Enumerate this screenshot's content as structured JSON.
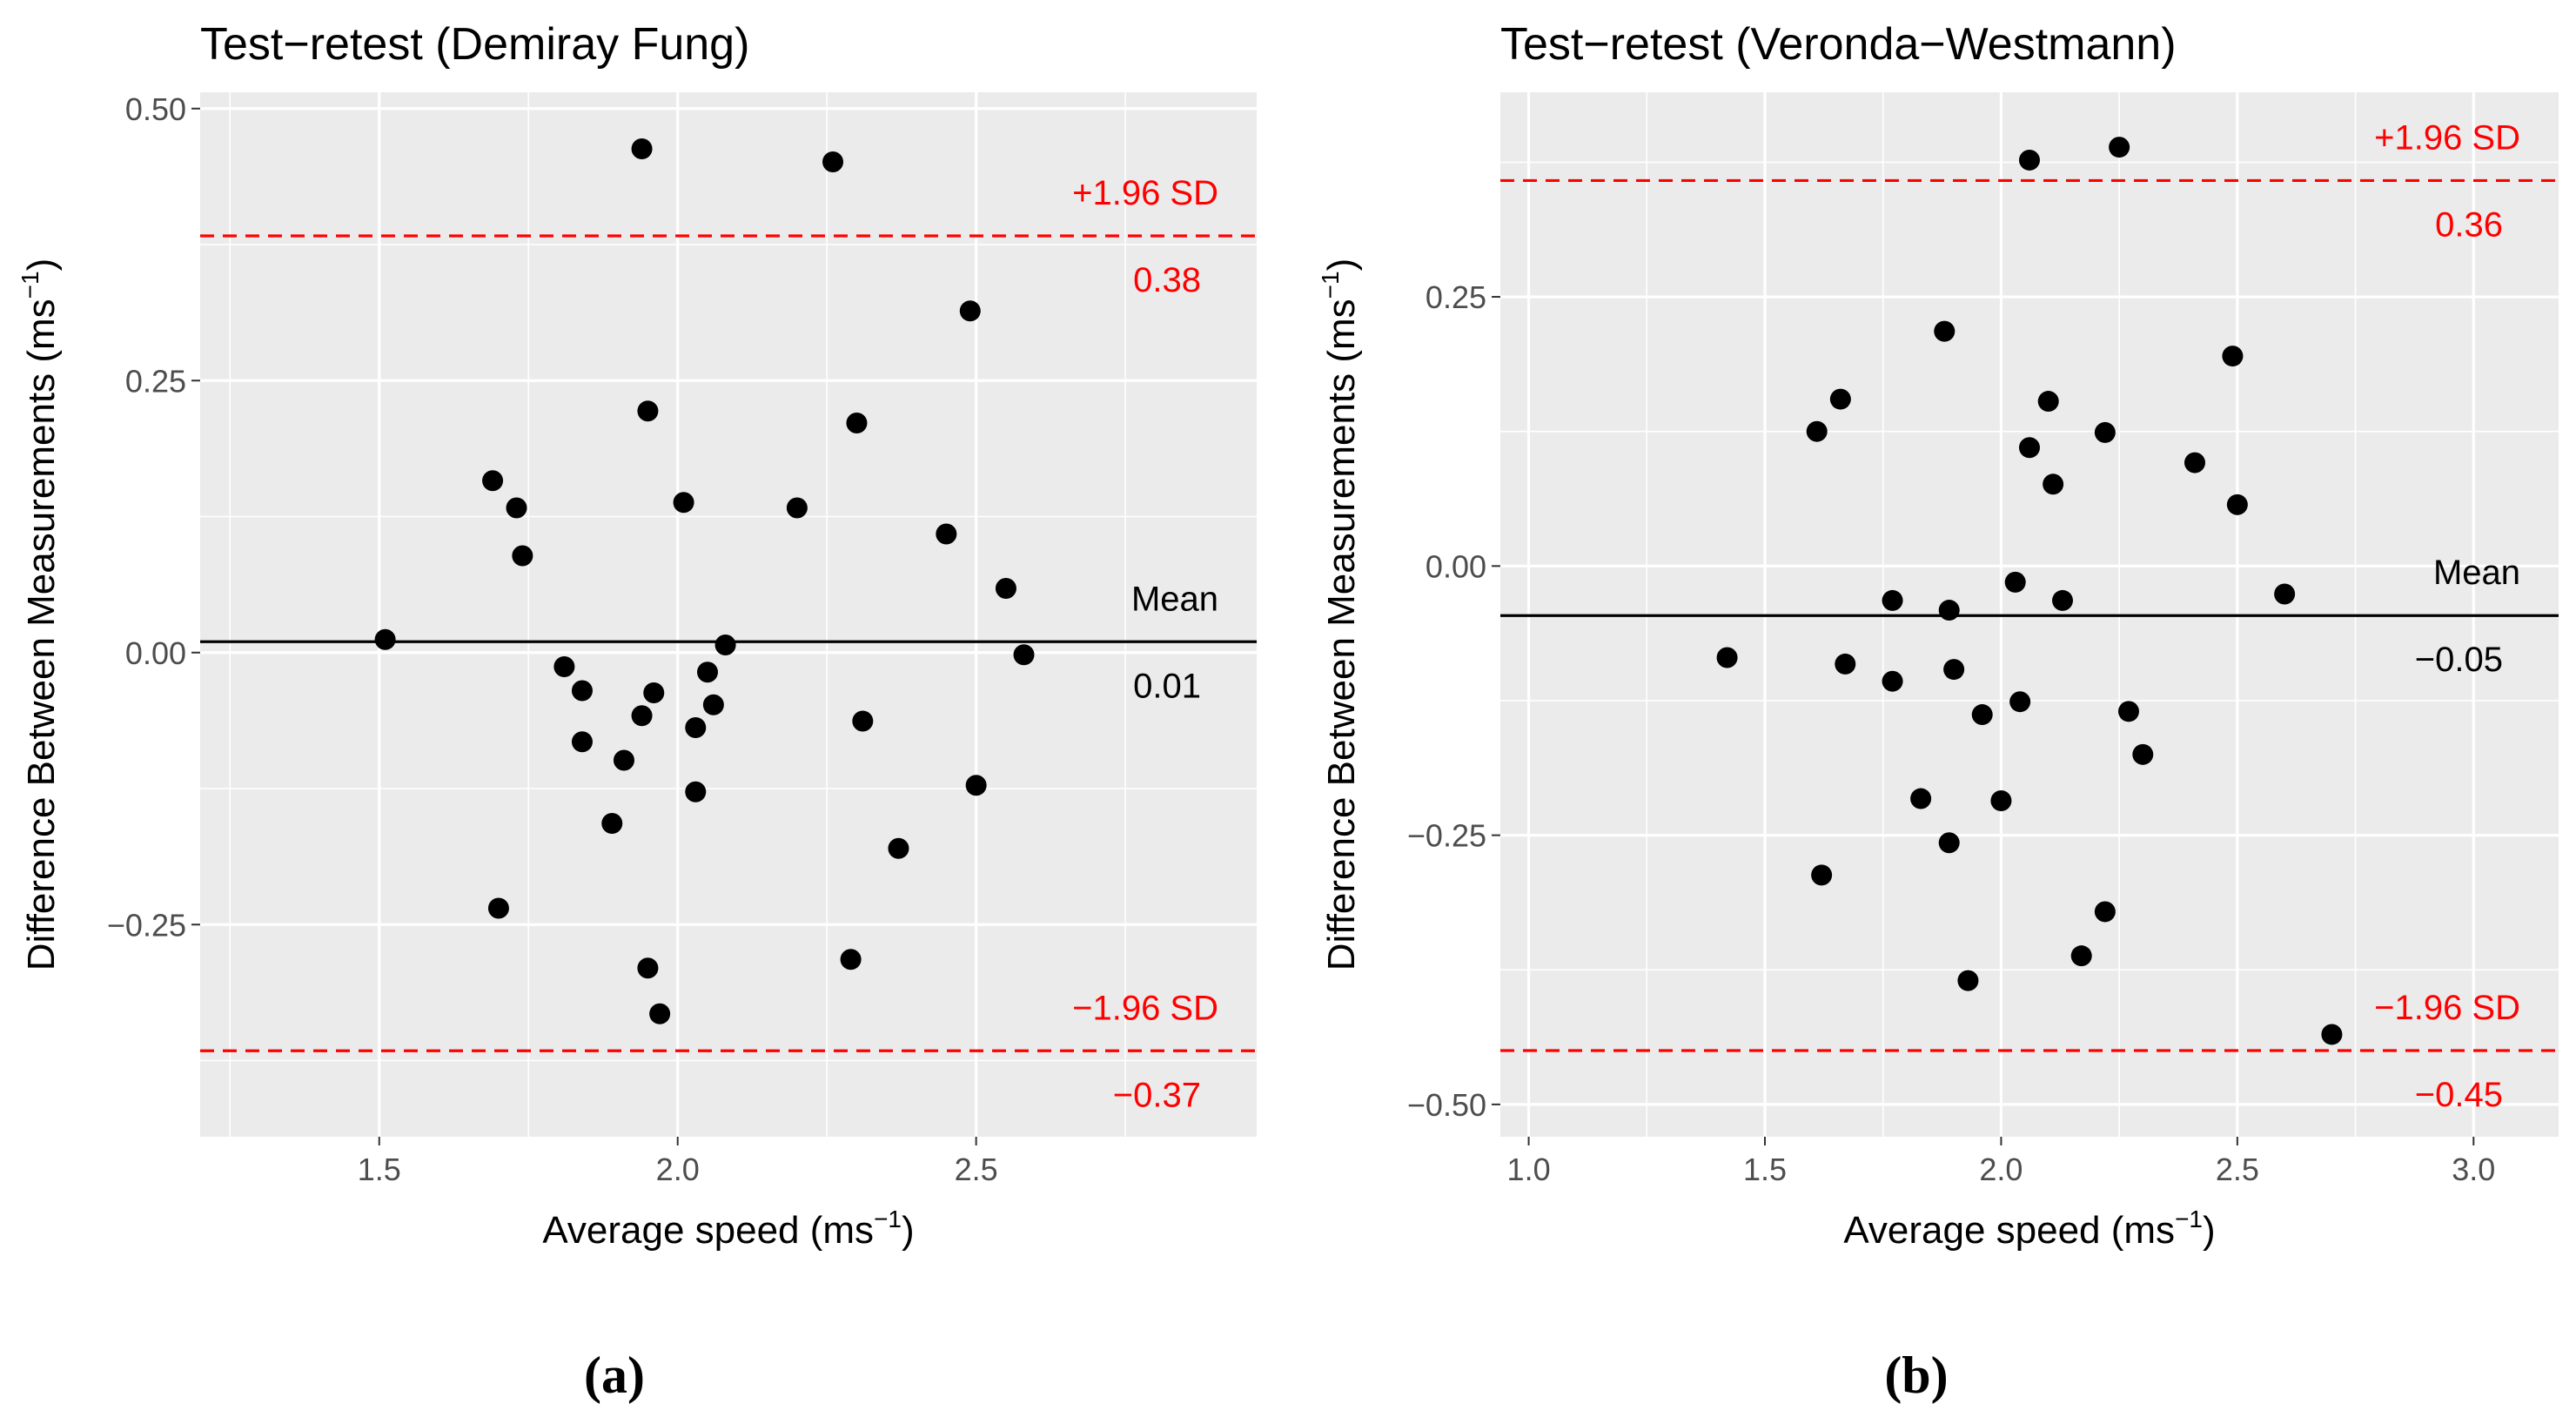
{
  "chart_data": [
    {
      "type": "scatter",
      "panel_label": "(a)",
      "title": "Test−retest (Demiray Fung)",
      "xlabel": "Average speed (ms",
      "xlabel_sup": "−1",
      "xlabel_end": ")",
      "ylabel": "Difference Between Measurements (ms",
      "ylabel_sup": "−1",
      "ylabel_end": ")",
      "xlim": [
        1.2,
        2.97
      ],
      "ylim": [
        -0.445,
        0.515
      ],
      "xticks": [
        1.5,
        2.0,
        2.5
      ],
      "xtick_labels": [
        "1.5",
        "2.0",
        "2.5"
      ],
      "yticks": [
        -0.25,
        0.0,
        0.25,
        0.5
      ],
      "ytick_labels": [
        "−0.25",
        "0.00",
        "0.25",
        "0.50"
      ],
      "grid": true,
      "mean": 0.01,
      "upper_loa": 0.383,
      "lower_loa": -0.366,
      "annotations": {
        "mean_label": "Mean",
        "mean_value": "0.01",
        "upper_label": "+1.96 SD",
        "upper_value": "0.38",
        "lower_label": "−1.96 SD",
        "lower_value": "−0.37"
      },
      "points": [
        {
          "x": 1.51,
          "y": 0.012
        },
        {
          "x": 1.69,
          "y": 0.158
        },
        {
          "x": 1.7,
          "y": -0.235
        },
        {
          "x": 1.73,
          "y": 0.133
        },
        {
          "x": 1.74,
          "y": 0.089
        },
        {
          "x": 1.81,
          "y": -0.013
        },
        {
          "x": 1.84,
          "y": -0.035
        },
        {
          "x": 1.84,
          "y": -0.082
        },
        {
          "x": 1.89,
          "y": -0.157
        },
        {
          "x": 1.91,
          "y": -0.099
        },
        {
          "x": 1.94,
          "y": 0.463
        },
        {
          "x": 1.94,
          "y": -0.058
        },
        {
          "x": 1.95,
          "y": 0.222
        },
        {
          "x": 1.95,
          "y": -0.29
        },
        {
          "x": 1.96,
          "y": -0.037
        },
        {
          "x": 1.97,
          "y": -0.332
        },
        {
          "x": 2.01,
          "y": 0.138
        },
        {
          "x": 2.03,
          "y": -0.069
        },
        {
          "x": 2.03,
          "y": -0.128
        },
        {
          "x": 2.05,
          "y": -0.018
        },
        {
          "x": 2.06,
          "y": -0.048
        },
        {
          "x": 2.08,
          "y": 0.007
        },
        {
          "x": 2.2,
          "y": 0.133
        },
        {
          "x": 2.26,
          "y": 0.451
        },
        {
          "x": 2.29,
          "y": -0.282
        },
        {
          "x": 2.3,
          "y": 0.211
        },
        {
          "x": 2.31,
          "y": -0.063
        },
        {
          "x": 2.37,
          "y": -0.18
        },
        {
          "x": 2.45,
          "y": 0.109
        },
        {
          "x": 2.49,
          "y": 0.314
        },
        {
          "x": 2.5,
          "y": -0.122
        },
        {
          "x": 2.55,
          "y": 0.059
        },
        {
          "x": 2.58,
          "y": -0.002
        }
      ]
    },
    {
      "type": "scatter",
      "panel_label": "(b)",
      "title": "Test−retest (Veronda−Westmann)",
      "xlabel": "Average speed (ms",
      "xlabel_sup": "−1",
      "xlabel_end": ")",
      "ylabel": "Difference Between Measurements (ms",
      "ylabel_sup": "−1",
      "ylabel_end": ")",
      "xlim": [
        0.94,
        3.18
      ],
      "ylim": [
        -0.53,
        0.44
      ],
      "xticks": [
        1.0,
        1.5,
        2.0,
        2.5,
        3.0
      ],
      "xtick_labels": [
        "1.0",
        "1.5",
        "2.0",
        "2.5",
        "3.0"
      ],
      "yticks": [
        -0.5,
        -0.25,
        0.0,
        0.25
      ],
      "ytick_labels": [
        "−0.50",
        "−0.25",
        "0.00",
        "0.25"
      ],
      "grid": true,
      "mean": -0.046,
      "upper_loa": 0.358,
      "lower_loa": -0.45,
      "annotations": {
        "mean_label": "Mean",
        "mean_value": "−0.05",
        "upper_label": "+1.96 SD",
        "upper_value": "0.36",
        "lower_label": "−1.96 SD",
        "lower_value": "−0.45"
      },
      "points": [
        {
          "x": 1.42,
          "y": -0.085
        },
        {
          "x": 1.61,
          "y": 0.125
        },
        {
          "x": 1.62,
          "y": -0.287
        },
        {
          "x": 1.66,
          "y": 0.155
        },
        {
          "x": 1.67,
          "y": -0.091
        },
        {
          "x": 1.77,
          "y": -0.032
        },
        {
          "x": 1.77,
          "y": -0.107
        },
        {
          "x": 1.83,
          "y": -0.216
        },
        {
          "x": 1.88,
          "y": 0.218
        },
        {
          "x": 1.89,
          "y": -0.041
        },
        {
          "x": 1.89,
          "y": -0.257
        },
        {
          "x": 1.9,
          "y": -0.096
        },
        {
          "x": 1.93,
          "y": -0.385
        },
        {
          "x": 1.96,
          "y": -0.138
        },
        {
          "x": 2.0,
          "y": -0.218
        },
        {
          "x": 2.03,
          "y": -0.015
        },
        {
          "x": 2.04,
          "y": -0.126
        },
        {
          "x": 2.06,
          "y": 0.377
        },
        {
          "x": 2.06,
          "y": 0.11
        },
        {
          "x": 2.1,
          "y": 0.153
        },
        {
          "x": 2.11,
          "y": 0.076
        },
        {
          "x": 2.13,
          "y": -0.032
        },
        {
          "x": 2.17,
          "y": -0.362
        },
        {
          "x": 2.22,
          "y": 0.124
        },
        {
          "x": 2.22,
          "y": -0.321
        },
        {
          "x": 2.25,
          "y": 0.389
        },
        {
          "x": 2.27,
          "y": -0.135
        },
        {
          "x": 2.3,
          "y": -0.175
        },
        {
          "x": 2.41,
          "y": 0.096
        },
        {
          "x": 2.49,
          "y": 0.195
        },
        {
          "x": 2.5,
          "y": 0.057
        },
        {
          "x": 2.6,
          "y": -0.026
        },
        {
          "x": 2.7,
          "y": -0.435
        }
      ]
    }
  ],
  "colors": {
    "panel_bg": "#ebebeb",
    "grid": "#ffffff",
    "points": "#000000",
    "mean_line": "#000000",
    "limits": "#ff0000",
    "tick_text": "#4d4d4d"
  }
}
